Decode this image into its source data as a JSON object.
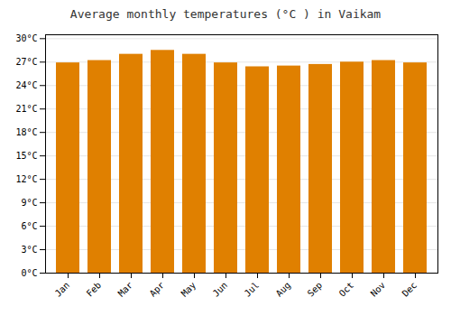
{
  "chart_data": {
    "type": "bar",
    "title": "Average monthly temperatures (°C ) in Vaikam",
    "categories": [
      "Jan",
      "Feb",
      "Mar",
      "Apr",
      "May",
      "Jun",
      "Jul",
      "Aug",
      "Sep",
      "Oct",
      "Nov",
      "Dec"
    ],
    "values": [
      26.9,
      27.2,
      28.0,
      28.5,
      28.0,
      26.9,
      26.4,
      26.5,
      26.7,
      27.0,
      27.2,
      26.9
    ],
    "color": "#E08000",
    "ylim": [
      0,
      30.5
    ],
    "yticks": [
      {
        "value": 0,
        "label": "0°C"
      },
      {
        "value": 3,
        "label": "3°C"
      },
      {
        "value": 6,
        "label": "6°C"
      },
      {
        "value": 9,
        "label": "9°C"
      },
      {
        "value": 12,
        "label": "12°C"
      },
      {
        "value": 15,
        "label": "15°C"
      },
      {
        "value": 18,
        "label": "18°C"
      },
      {
        "value": 21,
        "label": "21°C"
      },
      {
        "value": 24,
        "label": "24°C"
      },
      {
        "value": 27,
        "label": "27°C"
      },
      {
        "value": 30,
        "label": "30°C"
      }
    ],
    "grid": true
  }
}
